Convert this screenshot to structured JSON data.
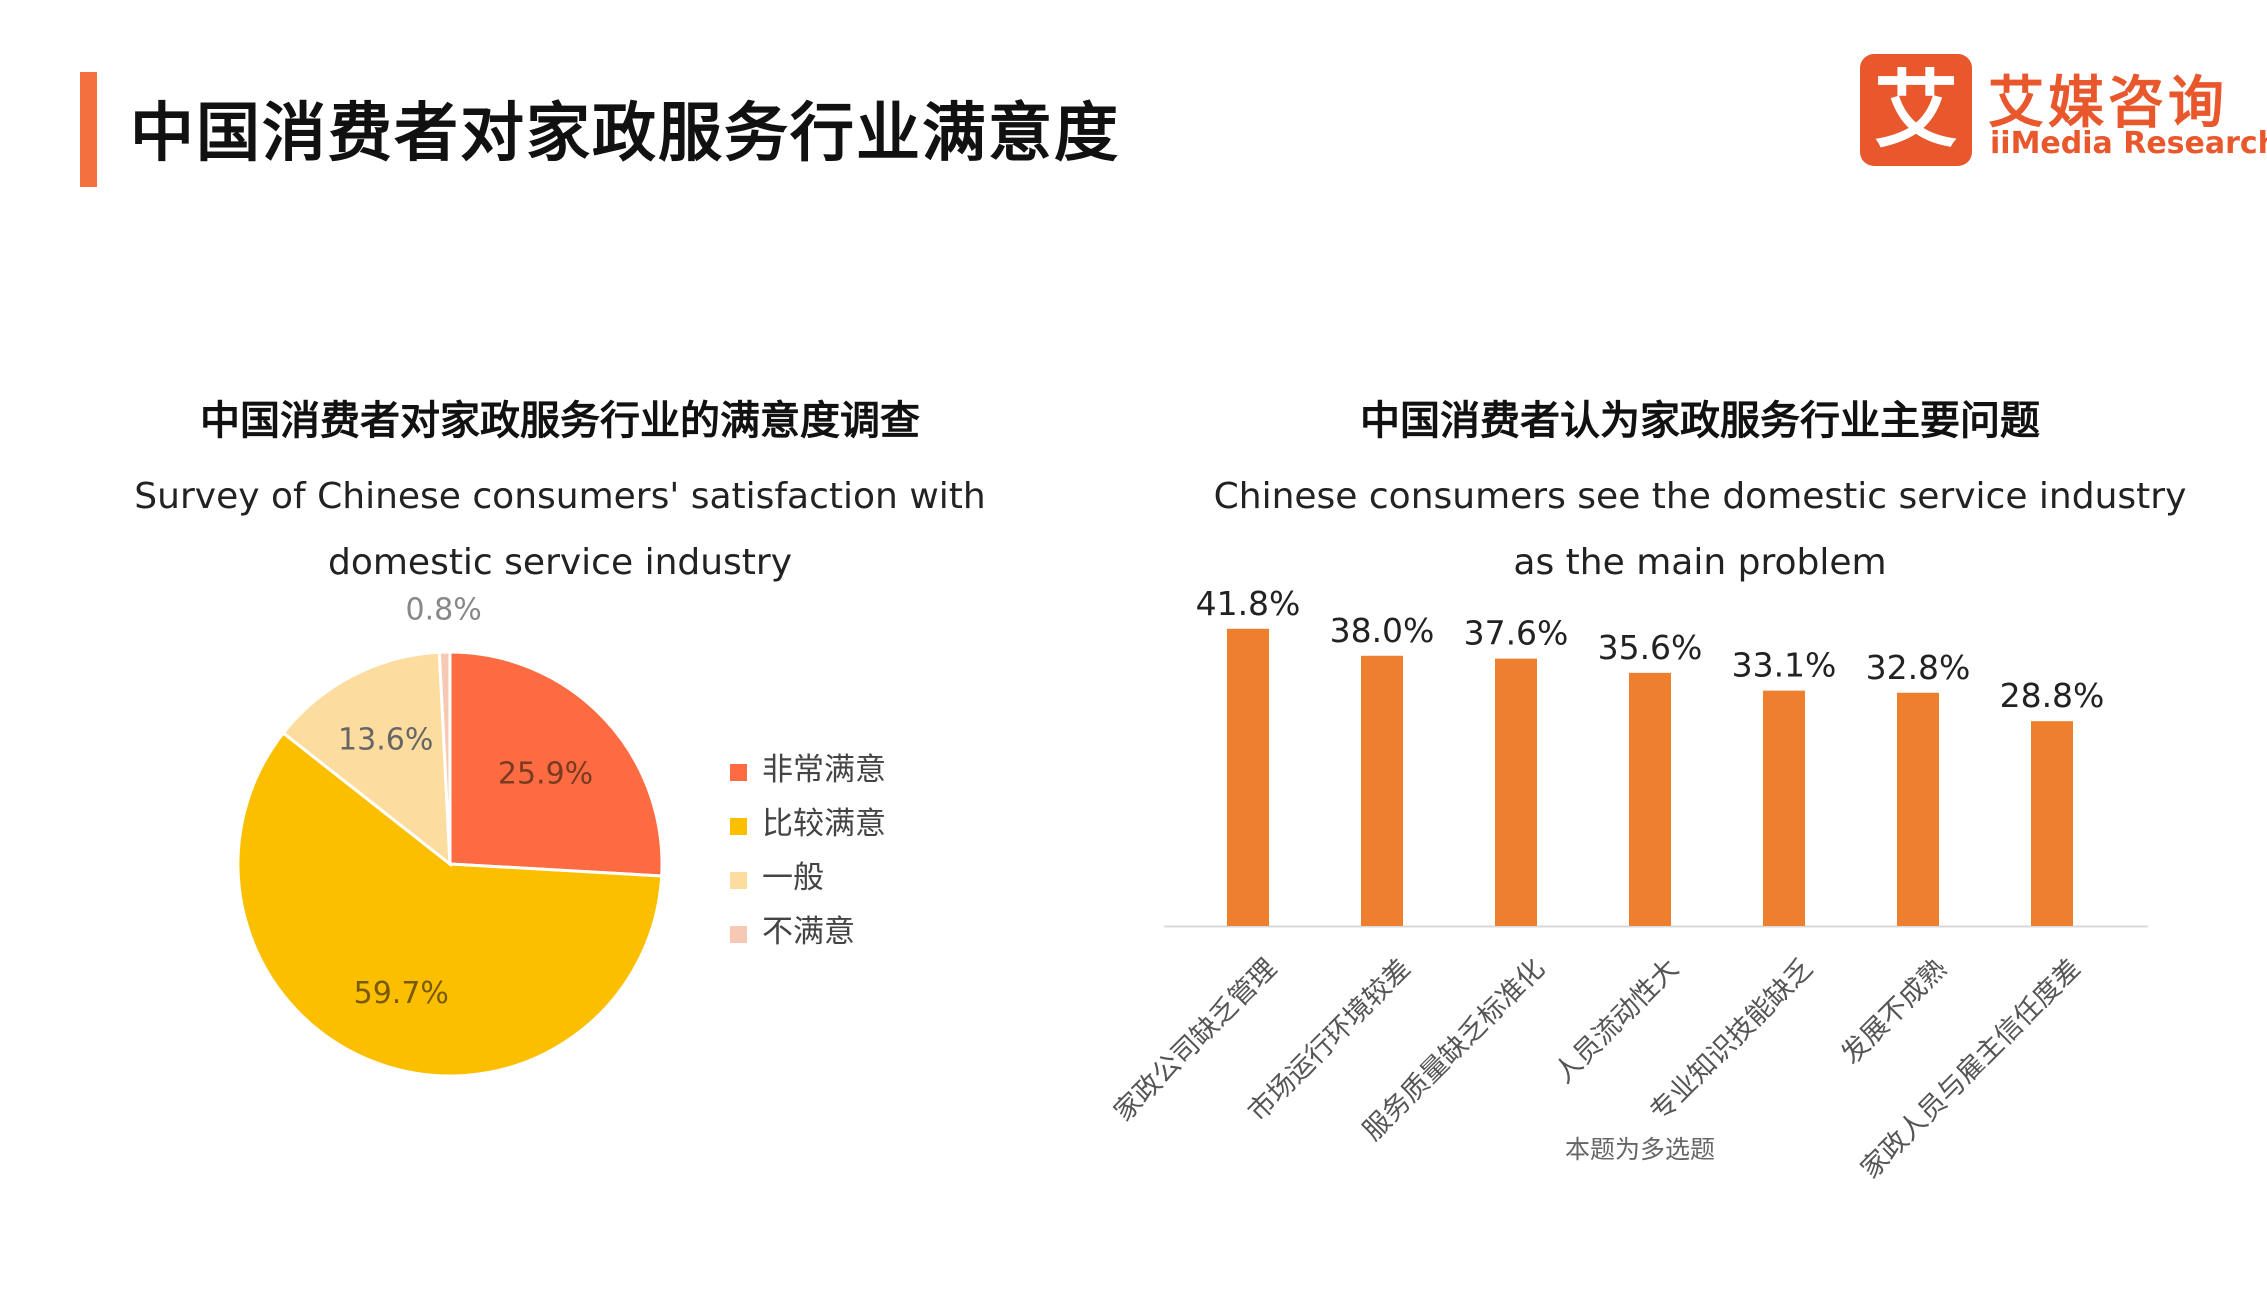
{
  "page": {
    "title": "中国消费者对家政服务行业满意度",
    "accent_color": "#f4703f"
  },
  "logo": {
    "mark": "艾",
    "name_cn": "艾媒咨询",
    "name_en": "iiMedia Research",
    "color": "#e8582c"
  },
  "chart_data": [
    {
      "type": "pie",
      "title": "中国消费者对家政服务行业的满意度调查",
      "subtitle": "Survey of Chinese consumers' satisfaction with domestic service industry",
      "categories": [
        "非常满意",
        "比较满意",
        "一般",
        "不满意"
      ],
      "values": [
        25.9,
        59.7,
        13.6,
        0.8
      ],
      "labels": [
        "25.9%",
        "59.7%",
        "13.6%",
        "0.8%"
      ],
      "colors": [
        "#fd6b42",
        "#fbbf00",
        "#fddca0",
        "#f7c9b4"
      ],
      "legend_position": "right"
    },
    {
      "type": "bar",
      "title": "中国消费者认为家政服务行业主要问题",
      "subtitle": "Chinese consumers see the domestic service industry as the main problem",
      "categories": [
        "家政公司缺乏管理",
        "市场运行环境较差",
        "服务质量缺乏标准化",
        "人员流动性大",
        "专业知识技能缺乏",
        "发展不成熟",
        "家政人员与雇主信任度差"
      ],
      "values": [
        41.8,
        38.0,
        37.6,
        35.6,
        33.1,
        32.8,
        28.8
      ],
      "labels": [
        "41.8%",
        "38.0%",
        "37.6%",
        "35.6%",
        "33.1%",
        "32.8%",
        "28.8%"
      ],
      "color": "#ee7f2f",
      "note": "本题为多选题",
      "grid": false,
      "ylim": [
        0,
        45
      ]
    }
  ]
}
